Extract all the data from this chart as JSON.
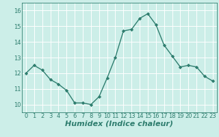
{
  "x": [
    0,
    1,
    2,
    3,
    4,
    5,
    6,
    7,
    8,
    9,
    10,
    11,
    12,
    13,
    14,
    15,
    16,
    17,
    18,
    19,
    20,
    21,
    22,
    23
  ],
  "y": [
    12.0,
    12.5,
    12.2,
    11.6,
    11.3,
    10.9,
    10.1,
    10.1,
    10.0,
    10.5,
    11.7,
    13.0,
    14.7,
    14.8,
    15.5,
    15.8,
    15.1,
    13.8,
    13.1,
    12.4,
    12.5,
    12.4,
    11.8,
    11.5
  ],
  "line_color": "#2e7d6e",
  "marker": "D",
  "marker_size": 2.2,
  "bg_color": "#cceee8",
  "grid_color": "#ffffff",
  "xlabel": "Humidex (Indice chaleur)",
  "xlabel_fontsize": 8,
  "tick_color": "#2e7d6e",
  "tick_fontsize": 6,
  "xlim": [
    -0.5,
    23.5
  ],
  "ylim": [
    9.5,
    16.5
  ],
  "yticks": [
    10,
    11,
    12,
    13,
    14,
    15,
    16
  ],
  "xticks": [
    0,
    1,
    2,
    3,
    4,
    5,
    6,
    7,
    8,
    9,
    10,
    11,
    12,
    13,
    14,
    15,
    16,
    17,
    18,
    19,
    20,
    21,
    22,
    23
  ],
  "linewidth": 1.0
}
